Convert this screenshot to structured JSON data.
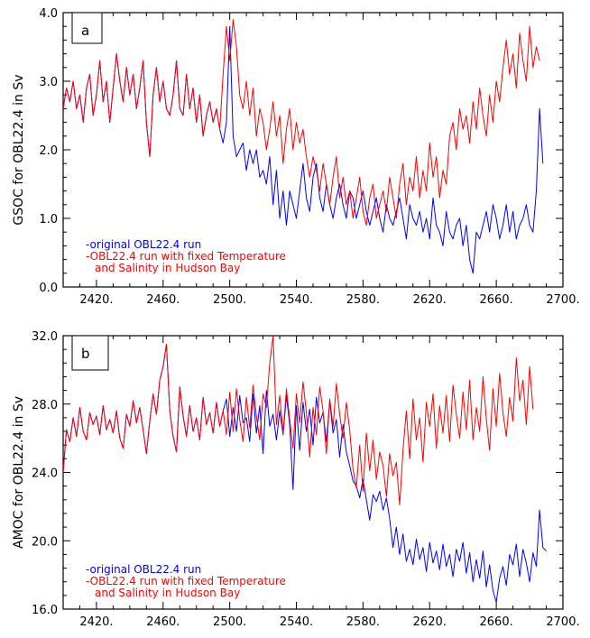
{
  "chart_data": [
    {
      "panel": "a",
      "type": "line",
      "ylabel": "GSOC for OBL22.4  in Sv",
      "xlim": [
        2400,
        2700
      ],
      "ylim": [
        0.0,
        4.0
      ],
      "x_ticks": [
        2420,
        2460,
        2500,
        2540,
        2580,
        2620,
        2660,
        2700
      ],
      "x_tick_labels": [
        "2420.",
        "2460.",
        "2500.",
        "2540.",
        "2580.",
        "2620.",
        "2660.",
        "2700."
      ],
      "y_ticks": [
        0.0,
        1.0,
        2.0,
        3.0,
        4.0
      ],
      "y_tick_labels": [
        "0.0",
        "1.0",
        "2.0",
        "3.0",
        "4.0"
      ],
      "legend_placement": "bottom-left",
      "legend_lines": [
        {
          "text": "-original OBL22.4 run",
          "color": "#0000ff"
        },
        {
          "text": "-OBL22.4 run with fixed Temperature",
          "color": "#ff0000"
        },
        {
          "text": "and Salinity in Hudson Bay",
          "color": "#ff0000"
        }
      ],
      "x_start": 2400,
      "x_step": 2,
      "series": [
        {
          "color": "#0000ff",
          "values": [
            2.6,
            2.9,
            2.7,
            3.0,
            2.6,
            2.8,
            2.4,
            2.9,
            3.1,
            2.5,
            2.8,
            3.3,
            2.7,
            3.0,
            2.4,
            2.9,
            3.4,
            3.0,
            2.7,
            3.2,
            2.8,
            3.1,
            2.6,
            2.9,
            3.3,
            2.4,
            1.9,
            2.8,
            3.2,
            2.7,
            3.0,
            2.6,
            2.5,
            2.8,
            3.3,
            2.6,
            2.5,
            3.1,
            2.6,
            2.9,
            2.4,
            2.8,
            2.2,
            2.5,
            2.7,
            2.4,
            2.6,
            2.3,
            2.1,
            2.4,
            3.8,
            2.2,
            1.9,
            2.0,
            2.1,
            1.7,
            2.0,
            1.8,
            2.0,
            1.6,
            1.7,
            1.5,
            1.9,
            1.2,
            1.7,
            1.0,
            1.4,
            0.9,
            1.4,
            1.2,
            1.0,
            1.4,
            1.8,
            1.3,
            1.1,
            1.6,
            1.8,
            1.3,
            1.1,
            1.5,
            1.2,
            1.0,
            1.3,
            1.5,
            1.2,
            1.0,
            1.4,
            1.3,
            1.0,
            1.2,
            1.4,
            1.1,
            0.9,
            1.1,
            1.3,
            1.0,
            0.8,
            1.2,
            1.0,
            0.9,
            1.1,
            1.3,
            1.0,
            0.7,
            1.2,
            1.0,
            0.9,
            1.1,
            0.8,
            1.0,
            0.7,
            1.3,
            0.9,
            0.8,
            0.6,
            1.1,
            0.8,
            0.7,
            0.9,
            1.0,
            0.6,
            0.9,
            0.4,
            0.2,
            0.8,
            0.7,
            0.9,
            1.1,
            0.8,
            1.2,
            1.0,
            0.7,
            0.9,
            1.2,
            0.8,
            1.1,
            0.7,
            0.9,
            1.0,
            1.2,
            0.9,
            0.8,
            1.4,
            2.6,
            1.8
          ]
        },
        {
          "color": "#ff0000",
          "values": [
            2.6,
            2.9,
            2.7,
            3.0,
            2.6,
            2.8,
            2.4,
            2.9,
            3.1,
            2.5,
            2.8,
            3.3,
            2.7,
            3.0,
            2.4,
            2.9,
            3.4,
            3.0,
            2.7,
            3.2,
            2.8,
            3.1,
            2.6,
            2.9,
            3.3,
            2.4,
            1.9,
            2.8,
            3.2,
            2.7,
            3.0,
            2.6,
            2.5,
            2.8,
            3.3,
            2.6,
            2.5,
            3.1,
            2.6,
            2.9,
            2.4,
            2.8,
            2.2,
            2.5,
            2.7,
            2.4,
            2.6,
            2.3,
            3.1,
            3.8,
            3.3,
            3.9,
            3.5,
            2.8,
            2.6,
            3.0,
            2.5,
            2.9,
            2.2,
            2.6,
            2.4,
            2.0,
            2.3,
            2.7,
            2.2,
            2.5,
            1.8,
            2.3,
            2.6,
            2.0,
            2.4,
            2.1,
            2.3,
            1.9,
            1.6,
            1.9,
            1.7,
            1.4,
            1.8,
            1.5,
            1.2,
            1.6,
            1.9,
            1.3,
            1.6,
            1.2,
            1.4,
            1.0,
            1.3,
            1.6,
            1.1,
            0.9,
            1.3,
            1.5,
            1.0,
            1.2,
            1.4,
            1.1,
            1.6,
            1.3,
            1.0,
            1.5,
            1.8,
            1.2,
            1.6,
            1.4,
            1.9,
            1.3,
            1.7,
            1.4,
            2.1,
            1.6,
            1.9,
            1.3,
            1.7,
            1.5,
            2.2,
            2.4,
            2.0,
            2.6,
            2.3,
            2.5,
            2.1,
            2.7,
            2.3,
            2.9,
            2.5,
            2.2,
            2.8,
            2.4,
            3.0,
            2.7,
            3.2,
            3.6,
            3.1,
            3.4,
            2.9,
            3.7,
            3.3,
            3.0,
            3.8,
            3.2,
            3.5,
            3.3
          ]
        }
      ]
    },
    {
      "panel": "b",
      "type": "line",
      "ylabel": "AMOC for OBL22.4  in Sv",
      "xlim": [
        2400,
        2700
      ],
      "ylim": [
        16.0,
        32.0
      ],
      "x_ticks": [
        2420,
        2460,
        2500,
        2540,
        2580,
        2620,
        2660,
        2700
      ],
      "x_tick_labels": [
        "2420.",
        "2460.",
        "2500.",
        "2540.",
        "2580.",
        "2620.",
        "2660.",
        "2700."
      ],
      "y_ticks": [
        16.0,
        20.0,
        24.0,
        28.0,
        32.0
      ],
      "y_tick_labels": [
        "16.0",
        "20.0",
        "24.0",
        "28.0",
        "32.0"
      ],
      "legend_placement": "bottom-left",
      "legend_lines": [
        {
          "text": "-original OBL22.4 run",
          "color": "#0000ff"
        },
        {
          "text": "-OBL22.4 run with fixed Temperature",
          "color": "#ff0000"
        },
        {
          "text": "and Salinity in Hudson Bay",
          "color": "#ff0000"
        }
      ],
      "x_start": 2400,
      "x_step": 2,
      "series": [
        {
          "color": "#0000ff",
          "values": [
            24.0,
            26.5,
            25.8,
            27.2,
            26.1,
            27.8,
            26.4,
            25.9,
            27.5,
            26.8,
            27.3,
            26.2,
            27.9,
            26.5,
            27.1,
            26.3,
            27.6,
            26.0,
            25.4,
            27.4,
            26.7,
            28.2,
            26.9,
            27.8,
            26.5,
            25.1,
            27.0,
            28.6,
            27.4,
            29.4,
            30.2,
            31.5,
            27.6,
            26.1,
            25.2,
            29.0,
            27.3,
            26.1,
            27.9,
            26.4,
            27.2,
            25.9,
            28.4,
            26.8,
            27.5,
            26.3,
            28.1,
            26.7,
            27.6,
            28.3,
            26.1,
            27.8,
            26.4,
            28.5,
            26.9,
            27.2,
            25.8,
            28.6,
            26.3,
            27.9,
            25.1,
            28.8,
            26.7,
            27.4,
            25.9,
            27.6,
            26.2,
            28.5,
            26.8,
            23.0,
            27.9,
            25.3,
            28.1,
            26.4,
            27.7,
            25.6,
            28.4,
            26.9,
            27.5,
            25.8,
            28.2,
            26.3,
            27.1,
            24.9,
            26.8,
            25.2,
            24.4,
            23.5,
            23.2,
            22.5,
            23.6,
            22.4,
            21.2,
            22.7,
            22.3,
            22.9,
            21.8,
            22.5,
            21.3,
            19.6,
            20.8,
            19.2,
            20.4,
            18.8,
            19.5,
            18.6,
            20.1,
            18.9,
            19.6,
            18.2,
            19.9,
            18.7,
            19.4,
            18.3,
            19.8,
            18.5,
            19.2,
            17.9,
            19.5,
            18.8,
            19.9,
            18.1,
            19.3,
            17.6,
            18.9,
            17.8,
            19.4,
            17.3,
            18.6,
            17.1,
            16.4,
            17.8,
            18.5,
            17.4,
            19.2,
            18.6,
            19.8,
            17.9,
            19.5,
            18.7,
            17.6,
            19.3,
            18.5,
            21.8,
            19.6,
            19.4
          ]
        },
        {
          "color": "#ff0000",
          "values": [
            24.0,
            26.5,
            25.8,
            27.2,
            26.1,
            27.8,
            26.4,
            25.9,
            27.5,
            26.8,
            27.3,
            26.2,
            27.9,
            26.5,
            27.1,
            26.3,
            27.6,
            26.0,
            25.4,
            27.4,
            26.7,
            28.2,
            26.9,
            27.8,
            26.5,
            25.1,
            27.0,
            28.6,
            27.4,
            29.4,
            30.2,
            31.5,
            27.6,
            26.1,
            25.2,
            29.0,
            27.3,
            26.1,
            27.9,
            26.4,
            27.2,
            25.9,
            28.4,
            26.8,
            27.5,
            26.3,
            28.1,
            26.7,
            27.6,
            26.2,
            28.7,
            26.4,
            28.9,
            27.1,
            25.8,
            28.4,
            26.6,
            29.1,
            27.3,
            25.9,
            28.6,
            27.8,
            30.4,
            32.0,
            26.8,
            28.5,
            26.3,
            28.9,
            27.1,
            25.4,
            28.6,
            26.9,
            29.3,
            27.5,
            24.9,
            27.8,
            26.2,
            29.0,
            27.6,
            25.1,
            28.3,
            26.7,
            29.2,
            27.4,
            26.0,
            28.1,
            26.5,
            24.2,
            23.1,
            25.6,
            22.9,
            26.3,
            24.1,
            25.9,
            23.6,
            25.2,
            24.4,
            22.6,
            25.1,
            23.8,
            24.6,
            22.1,
            25.3,
            27.6,
            24.8,
            28.3,
            25.9,
            27.2,
            24.6,
            28.1,
            26.7,
            28.6,
            25.4,
            27.9,
            26.3,
            28.5,
            25.8,
            29.1,
            27.4,
            26.0,
            28.7,
            26.5,
            29.4,
            25.9,
            27.8,
            26.4,
            29.6,
            27.1,
            25.3,
            28.9,
            26.7,
            29.8,
            27.5,
            26.1,
            28.4,
            27.0,
            30.7,
            28.2,
            29.4,
            26.8,
            30.2,
            27.7
          ]
        }
      ]
    }
  ],
  "panel_labels": [
    "a",
    "b"
  ]
}
